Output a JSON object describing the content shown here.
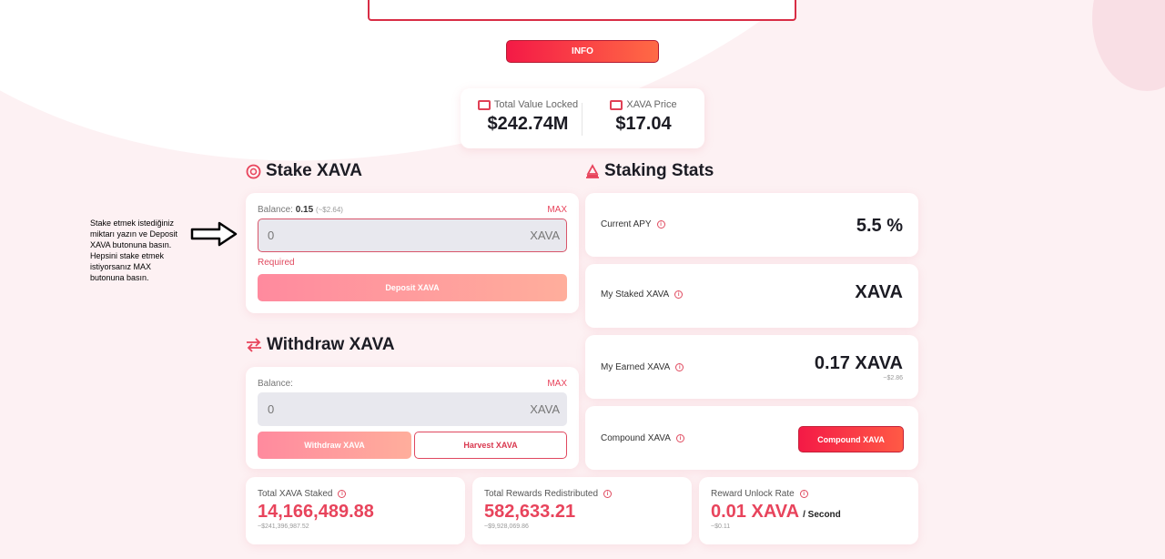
{
  "top": {
    "info_label": "INFO"
  },
  "tvl": {
    "tvl_label": "Total Value Locked",
    "tvl_value": "$242.74M",
    "price_label": "XAVA Price",
    "price_value": "$17.04"
  },
  "stake": {
    "title": "Stake XAVA",
    "balance_label": "Balance:",
    "balance_value": "0.15",
    "balance_usd": "(~$2.64)",
    "max": "MAX",
    "input_value": "0",
    "input_unit": "XAVA",
    "required": "Required",
    "deposit_label": "Deposit XAVA"
  },
  "withdraw": {
    "title": "Withdraw XAVA",
    "balance_label": "Balance:",
    "max": "MAX",
    "input_value": "0",
    "input_unit": "XAVA",
    "withdraw_label": "Withdraw XAVA",
    "harvest_label": "Harvest XAVA"
  },
  "stats": {
    "title": "Staking Stats",
    "apy_label": "Current APY",
    "apy_value": "5.5 %",
    "staked_label": "My Staked XAVA",
    "staked_value": "XAVA",
    "earned_label": "My Earned XAVA",
    "earned_value": "0.17 XAVA",
    "earned_usd": "~$2.86",
    "compound_label": "Compound XAVA",
    "compound_button": "Compound XAVA"
  },
  "totals": {
    "staked_label": "Total XAVA Staked",
    "staked_value": "14,166,489.88",
    "staked_usd": "~$241,396,987.52",
    "rewards_label": "Total Rewards Redistributed",
    "rewards_value": "582,633.21",
    "rewards_usd": "~$9,928,069.86",
    "unlock_label": "Reward Unlock Rate",
    "unlock_value": "0.01 XAVA",
    "unlock_unit": "/ Second",
    "unlock_usd": "~$0.11"
  },
  "annotation": {
    "text": "Stake etmek istediğiniz miktarı yazın ve Deposit XAVA butonuna basın. Hepsini stake etmek istiyorsanız MAX butonuna basın."
  },
  "colors": {
    "accent": "#e8445c",
    "bg": "#fdf1f3"
  }
}
